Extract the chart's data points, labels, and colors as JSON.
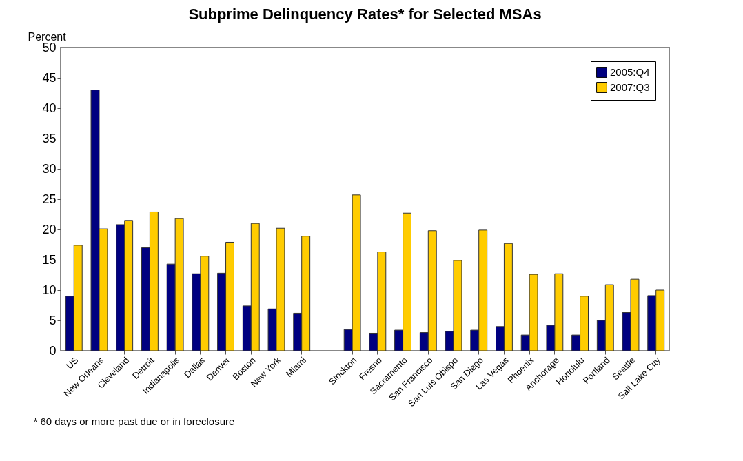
{
  "chart_data": {
    "type": "bar",
    "title": "Subprime Delinquency Rates* for Selected MSAs",
    "ylabel": "Percent",
    "categories": [
      "US",
      "New Orleans",
      "Cleveland",
      "Detroit",
      "Indianapolis",
      "Dallas",
      "Denver",
      "Boston",
      "New York",
      "Miami",
      null,
      "Stockton",
      "Fresno",
      "Sacramento",
      "San Francisco",
      "San Luis Obispo",
      "San Diego",
      "Las Vegas",
      "Phoenix",
      "Anchorage",
      "Honolulu",
      "Portland",
      "Seattle",
      "Salt Lake City"
    ],
    "series": [
      {
        "name": "2005:Q4",
        "color": "#000080",
        "values": [
          9,
          43,
          20.8,
          17,
          14.3,
          12.7,
          12.8,
          7.4,
          6.9,
          6.2,
          null,
          3.5,
          2.9,
          3.4,
          3,
          3.2,
          3.4,
          4,
          2.6,
          4.2,
          2.6,
          5,
          6.3,
          9.1
        ]
      },
      {
        "name": "2007:Q3",
        "color": "#ffcc00",
        "values": [
          17.4,
          20.1,
          21.5,
          22.9,
          21.8,
          15.6,
          17.9,
          21,
          20.2,
          18.9,
          null,
          25.7,
          16.3,
          22.7,
          19.8,
          14.9,
          19.9,
          17.7,
          12.6,
          12.7,
          9,
          10.9,
          11.8,
          10
        ]
      }
    ],
    "ylim": [
      0,
      50
    ],
    "yticks": [
      0,
      5,
      10,
      15,
      20,
      25,
      30,
      35,
      40,
      45,
      50
    ],
    "grid": false,
    "legend": "top right",
    "annotations": [
      "* 60 days or more past due or in foreclosure"
    ]
  }
}
